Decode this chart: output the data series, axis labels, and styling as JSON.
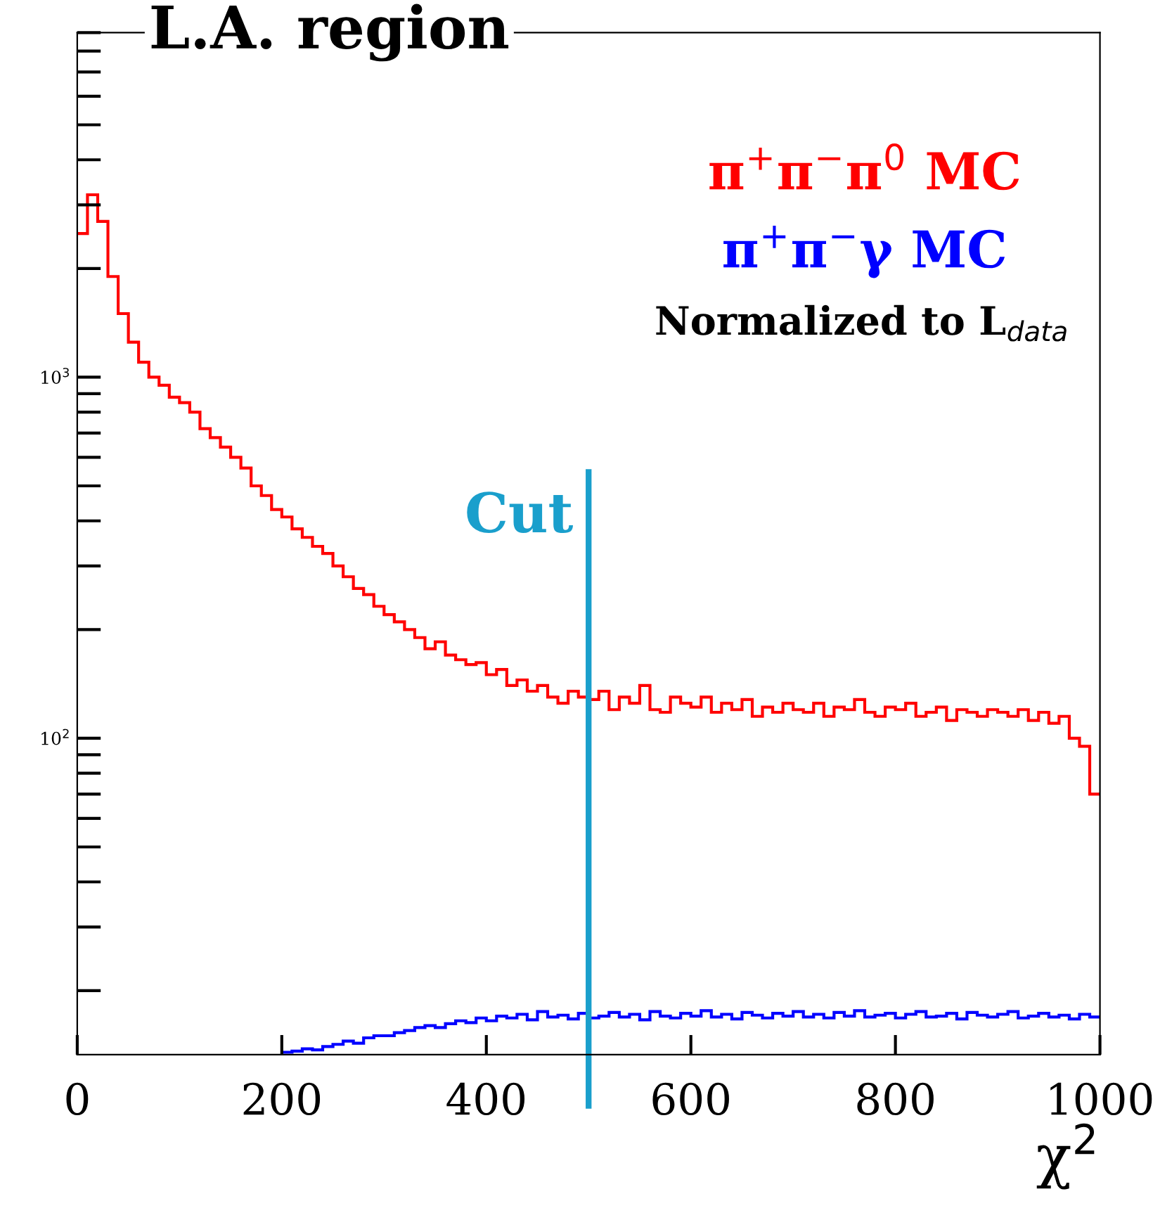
{
  "chart_data": {
    "type": "histogram",
    "title": "L.A. region",
    "xlabel": "χ$^{2}$",
    "bins": [
      0,
      10,
      20,
      30,
      40,
      50,
      60,
      70,
      80,
      90,
      100,
      110,
      120,
      130,
      140,
      150,
      160,
      170,
      180,
      190,
      200,
      210,
      220,
      230,
      240,
      250,
      260,
      270,
      280,
      290,
      300,
      310,
      320,
      330,
      340,
      350,
      360,
      370,
      380,
      390,
      400,
      410,
      420,
      430,
      440,
      450,
      460,
      470,
      480,
      490,
      500,
      510,
      520,
      530,
      540,
      550,
      560,
      570,
      580,
      590,
      600,
      610,
      620,
      630,
      640,
      650,
      660,
      670,
      680,
      690,
      700,
      710,
      720,
      730,
      740,
      750,
      760,
      770,
      780,
      790,
      800,
      810,
      820,
      830,
      840,
      850,
      860,
      870,
      880,
      890,
      900,
      910,
      920,
      930,
      940,
      950,
      960,
      970,
      980,
      990,
      1000
    ],
    "series": [
      {
        "name": "π$^{+}$π$^{−}$π$^{0}$ MC",
        "color": "#ff0000",
        "values": [
          2500,
          3200,
          2700,
          1900,
          1500,
          1250,
          1100,
          1000,
          950,
          880,
          850,
          800,
          720,
          680,
          640,
          600,
          560,
          500,
          470,
          430,
          410,
          380,
          360,
          340,
          325,
          300,
          280,
          260,
          250,
          232,
          220,
          210,
          200,
          190,
          177,
          185,
          170,
          165,
          160,
          162,
          150,
          155,
          140,
          145,
          135,
          140,
          130,
          125,
          135,
          130,
          128,
          135,
          120,
          130,
          125,
          140,
          120,
          118,
          130,
          125,
          122,
          130,
          118,
          125,
          120,
          128,
          115,
          122,
          118,
          125,
          120,
          118,
          125,
          115,
          122,
          120,
          128,
          118,
          115,
          122,
          120,
          125,
          115,
          118,
          122,
          112,
          120,
          118,
          115,
          120,
          118,
          115,
          120,
          112,
          118,
          110,
          115,
          100,
          95,
          70
        ]
      },
      {
        "name": "π$^{+}$π$^{−}$γ MC",
        "color": "#0000ff",
        "bins": [
          200,
          210,
          220,
          230,
          240,
          250,
          260,
          270,
          280,
          290,
          300,
          310,
          320,
          330,
          340,
          350,
          360,
          370,
          380,
          390,
          400,
          410,
          420,
          430,
          440,
          450,
          460,
          470,
          480,
          490,
          500,
          510,
          520,
          530,
          540,
          550,
          560,
          570,
          580,
          590,
          600,
          610,
          620,
          630,
          640,
          650,
          660,
          670,
          680,
          690,
          700,
          710,
          720,
          730,
          740,
          750,
          760,
          770,
          780,
          790,
          800,
          810,
          820,
          830,
          840,
          850,
          860,
          870,
          880,
          890,
          900,
          910,
          920,
          930,
          940,
          950,
          960,
          970,
          980,
          990,
          1000
        ],
        "values": [
          13.5,
          13.6,
          13.8,
          13.7,
          14,
          14.2,
          14.5,
          14.3,
          14.8,
          15,
          15,
          15.3,
          15.5,
          15.8,
          16,
          15.8,
          16.2,
          16.5,
          16.3,
          16.8,
          16.5,
          17,
          16.8,
          17.2,
          16.6,
          17.5,
          16.9,
          17.1,
          16.7,
          17.3,
          16.8,
          17,
          17.4,
          16.9,
          17.2,
          16.6,
          17.5,
          17,
          16.8,
          17.3,
          17,
          17.6,
          16.9,
          17.2,
          16.7,
          17.4,
          17.1,
          16.8,
          17.3,
          17,
          17.5,
          16.9,
          17.2,
          16.8,
          17.4,
          17,
          17.6,
          16.9,
          17.1,
          17.3,
          16.8,
          17.2,
          17.5,
          16.9,
          17,
          17.3,
          16.7,
          17.4,
          17.1,
          16.9,
          17.2,
          17.5,
          16.8,
          17,
          17.3,
          16.9,
          17.1,
          16.7,
          17.2,
          16.9
        ]
      }
    ],
    "log": "y",
    "xlim": [
      0,
      1000
    ],
    "xticks": [
      0,
      200,
      400,
      600,
      800,
      1000
    ],
    "ylim": [
      13.3,
      9000
    ],
    "yticks": [
      {
        "value": 100,
        "label": "10$^{2}$"
      },
      {
        "value": 1000,
        "label": "10$^{3}$"
      }
    ],
    "ref_lines": [
      {
        "axis": "x",
        "value": 500,
        "label": "Cut",
        "color": "#1a9fcc"
      }
    ],
    "annotations": [
      "Normalized to L$_{data}$"
    ],
    "grid": false
  }
}
